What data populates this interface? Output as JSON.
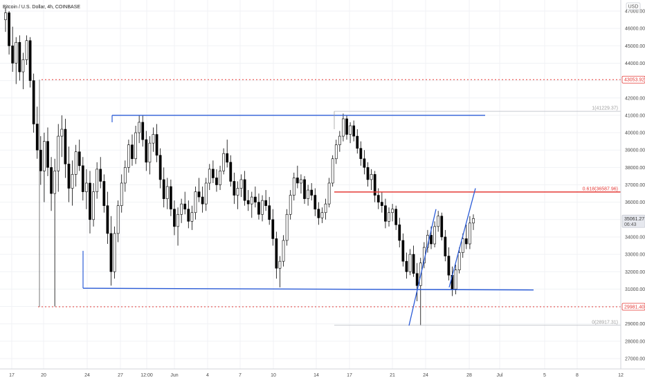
{
  "chart_data": {
    "type": "candlestick",
    "title": "Bitcoin / U.S. Dollar, 4h, COINBASE",
    "currency_label": "USD",
    "y_axis": {
      "range": [
        26500,
        47600
      ],
      "ticks": [
        27000,
        28000,
        29000,
        30000,
        31000,
        32000,
        33000,
        34000,
        35000,
        36000,
        37000,
        38000,
        39000,
        40000,
        41000,
        42000,
        43000,
        44000,
        45000,
        46000,
        47000
      ],
      "tick_labels": [
        "27000.00",
        "28000.00",
        "29000.00",
        "30000.00",
        "31000.00",
        "32000.00",
        "33000.00",
        "34000.00",
        "35000.00",
        "36000.00",
        "37000.00",
        "38000.00",
        "39000.00",
        "40000.00",
        "41000.00",
        "42000.00",
        "43000.00",
        "44000.00",
        "45000.00",
        "46000.00",
        "47000.00"
      ]
    },
    "x_axis": {
      "tick_labels": [
        "17",
        "20",
        "24",
        "27",
        "12:00",
        "Jun",
        "4",
        "7",
        "10",
        "14",
        "17",
        "21",
        "24",
        "28",
        "Jul",
        "5",
        "8",
        "12"
      ]
    },
    "price_tags": [
      {
        "label": "43053.92",
        "value": 43053.92,
        "color": "#e53935"
      },
      {
        "label": "35061.27",
        "value": 35061.27,
        "sub": "06:43",
        "color": "#e0e3eb"
      },
      {
        "label": "29981.40",
        "value": 29981.4,
        "color": "#e53935"
      }
    ],
    "horizontal_levels": [
      {
        "value": 43053.92,
        "style": "dotted",
        "color": "#e53935"
      },
      {
        "value": 29981.4,
        "style": "dotted",
        "color": "#e53935"
      }
    ],
    "fib_labels": [
      {
        "label": "1(41229.37)",
        "value": 41229.37,
        "color": "#9e9e9e"
      },
      {
        "label": "0.618(36587.96)",
        "value": 36587.96,
        "color": "#e53935"
      },
      {
        "label": "0(28917.31)",
        "value": 28917.31,
        "color": "#9e9e9e"
      }
    ],
    "trendlines": [
      {
        "name": "range-top",
        "from": [
          41000,
          0.17
        ],
        "to": [
          41000,
          0.75
        ],
        "color": "#2a5bd7"
      },
      {
        "name": "range-bottom",
        "from": [
          31000,
          0.13
        ],
        "to": [
          30950,
          0.83
        ],
        "color": "#2a5bd7"
      }
    ],
    "candles_ohlc": [
      [
        46500,
        47200,
        45800,
        46900
      ],
      [
        46900,
        47000,
        44500,
        45000
      ],
      [
        45000,
        46100,
        43500,
        44000
      ],
      [
        44000,
        45500,
        42800,
        45200
      ],
      [
        45200,
        45600,
        43000,
        43500
      ],
      [
        43500,
        44600,
        42500,
        44200
      ],
      [
        44200,
        45600,
        43900,
        45300
      ],
      [
        45300,
        45500,
        42600,
        43000
      ],
      [
        43000,
        43400,
        40000,
        40500
      ],
      [
        40500,
        41500,
        38500,
        39000
      ],
      [
        39000,
        39800,
        37000,
        37800
      ],
      [
        37800,
        40000,
        36000,
        39500
      ],
      [
        39500,
        40300,
        37500,
        38000
      ],
      [
        38000,
        38600,
        35500,
        36500
      ],
      [
        36500,
        38500,
        30000,
        37800
      ],
      [
        37800,
        40500,
        36600,
        39800
      ],
      [
        39800,
        41000,
        38600,
        40200
      ],
      [
        40200,
        40800,
        37400,
        38200
      ],
      [
        38200,
        39200,
        36000,
        36800
      ],
      [
        36800,
        38400,
        35800,
        37600
      ],
      [
        37600,
        39300,
        36900,
        38900
      ],
      [
        38900,
        39600,
        37800,
        38100
      ],
      [
        38100,
        38600,
        36100,
        36600
      ],
      [
        36600,
        37900,
        35600,
        37100
      ],
      [
        37100,
        37800,
        34200,
        35000
      ],
      [
        35000,
        37100,
        34600,
        36600
      ],
      [
        36600,
        38300,
        36200,
        37900
      ],
      [
        37900,
        38600,
        36800,
        37200
      ],
      [
        37200,
        37600,
        35400,
        35800
      ],
      [
        35800,
        36600,
        33600,
        34200
      ],
      [
        34200,
        35200,
        31200,
        32000
      ],
      [
        32000,
        34600,
        31600,
        34200
      ],
      [
        34200,
        36100,
        33700,
        35800
      ],
      [
        35800,
        37600,
        35400,
        37100
      ],
      [
        37100,
        38400,
        36600,
        38000
      ],
      [
        38000,
        39600,
        37700,
        39300
      ],
      [
        39300,
        39900,
        38100,
        38500
      ],
      [
        38500,
        40400,
        38200,
        40000
      ],
      [
        40000,
        41000,
        39400,
        40600
      ],
      [
        40600,
        41000,
        39200,
        39600
      ],
      [
        39600,
        40100,
        37800,
        38300
      ],
      [
        38300,
        39800,
        37600,
        39400
      ],
      [
        39400,
        40300,
        38900,
        39900
      ],
      [
        39900,
        40500,
        38300,
        38700
      ],
      [
        38700,
        39100,
        36800,
        37300
      ],
      [
        37300,
        38000,
        35700,
        36200
      ],
      [
        36200,
        37400,
        35600,
        36900
      ],
      [
        36900,
        37300,
        35200,
        35600
      ],
      [
        35600,
        36100,
        34100,
        34600
      ],
      [
        34600,
        35700,
        33500,
        35300
      ],
      [
        35300,
        36200,
        34800,
        35900
      ],
      [
        35900,
        36600,
        35300,
        35600
      ],
      [
        35600,
        36100,
        34500,
        34900
      ],
      [
        34900,
        35800,
        34400,
        35400
      ],
      [
        35400,
        36900,
        35000,
        36600
      ],
      [
        36600,
        37400,
        36000,
        36300
      ],
      [
        36300,
        36900,
        35400,
        35900
      ],
      [
        35900,
        37400,
        35500,
        37100
      ],
      [
        37100,
        38200,
        36700,
        37900
      ],
      [
        37900,
        38400,
        37100,
        37400
      ],
      [
        37400,
        37900,
        36600,
        37000
      ],
      [
        37000,
        38100,
        36700,
        37800
      ],
      [
        37800,
        39100,
        37600,
        38800
      ],
      [
        38800,
        39600,
        38000,
        38300
      ],
      [
        38300,
        38700,
        36900,
        37200
      ],
      [
        37200,
        37700,
        35900,
        36400
      ],
      [
        36400,
        37200,
        35600,
        36800
      ],
      [
        36800,
        37600,
        36300,
        37300
      ],
      [
        37300,
        37800,
        35800,
        36100
      ],
      [
        36100,
        36700,
        35500,
        35900
      ],
      [
        35900,
        36600,
        35100,
        36300
      ],
      [
        36300,
        36900,
        35700,
        36000
      ],
      [
        36000,
        36500,
        35000,
        35300
      ],
      [
        35300,
        36400,
        34900,
        36100
      ],
      [
        36100,
        36700,
        35500,
        35800
      ],
      [
        35800,
        36300,
        34700,
        35000
      ],
      [
        35000,
        35600,
        33500,
        33900
      ],
      [
        33900,
        34300,
        31600,
        32200
      ],
      [
        32200,
        32900,
        31100,
        32600
      ],
      [
        32600,
        34100,
        32300,
        33800
      ],
      [
        33800,
        35600,
        33500,
        35300
      ],
      [
        35300,
        36700,
        35000,
        36400
      ],
      [
        36400,
        37700,
        36100,
        37400
      ],
      [
        37400,
        38100,
        36800,
        37100
      ],
      [
        37100,
        37600,
        36500,
        37300
      ],
      [
        37300,
        37500,
        35900,
        36200
      ],
      [
        36200,
        37000,
        35800,
        36700
      ],
      [
        36700,
        37100,
        36100,
        36400
      ],
      [
        36400,
        36800,
        35200,
        35600
      ],
      [
        35600,
        36000,
        34700,
        35100
      ],
      [
        35100,
        35700,
        34800,
        35400
      ],
      [
        35400,
        36200,
        35000,
        35900
      ],
      [
        35900,
        37400,
        35700,
        37100
      ],
      [
        37100,
        38700,
        36900,
        38500
      ],
      [
        38500,
        39600,
        38200,
        39300
      ],
      [
        39300,
        40100,
        38900,
        39800
      ],
      [
        39800,
        41100,
        39500,
        40800
      ],
      [
        40800,
        41000,
        39600,
        39900
      ],
      [
        39900,
        40600,
        39400,
        40400
      ],
      [
        40400,
        40700,
        39500,
        39800
      ],
      [
        39800,
        40200,
        38800,
        39100
      ],
      [
        39100,
        39500,
        38100,
        38500
      ],
      [
        38500,
        39000,
        37600,
        38000
      ],
      [
        38000,
        38300,
        36900,
        37300
      ],
      [
        37300,
        37900,
        36700,
        37600
      ],
      [
        37600,
        37800,
        36000,
        36400
      ],
      [
        36400,
        36800,
        35600,
        36000
      ],
      [
        36000,
        36600,
        35400,
        35800
      ],
      [
        35800,
        36200,
        34500,
        34900
      ],
      [
        34900,
        35700,
        34600,
        35400
      ],
      [
        35400,
        35900,
        34900,
        35600
      ],
      [
        35600,
        35800,
        34400,
        34700
      ],
      [
        34700,
        35100,
        33400,
        33800
      ],
      [
        33800,
        34200,
        32300,
        32600
      ],
      [
        32600,
        33100,
        31600,
        32000
      ],
      [
        32000,
        33300,
        31800,
        33000
      ],
      [
        33000,
        33500,
        31700,
        31900
      ],
      [
        31900,
        32500,
        30300,
        31200
      ],
      [
        31200,
        32800,
        28900,
        32500
      ],
      [
        32500,
        33700,
        32200,
        33400
      ],
      [
        33400,
        34400,
        33100,
        34100
      ],
      [
        34100,
        34600,
        33300,
        33600
      ],
      [
        33600,
        34900,
        33400,
        34600
      ],
      [
        34600,
        35500,
        34300,
        35200
      ],
      [
        35200,
        35400,
        33800,
        34000
      ],
      [
        34000,
        34400,
        32600,
        32900
      ],
      [
        32900,
        33400,
        31500,
        31800
      ],
      [
        31800,
        32300,
        30600,
        31000
      ],
      [
        31000,
        32400,
        30700,
        32100
      ],
      [
        32100,
        33400,
        31900,
        33100
      ],
      [
        33100,
        34200,
        32800,
        33900
      ],
      [
        33900,
        34700,
        33300,
        33600
      ],
      [
        33600,
        35200,
        33300,
        34800
      ],
      [
        34800,
        35300,
        34400,
        35061
      ]
    ]
  }
}
